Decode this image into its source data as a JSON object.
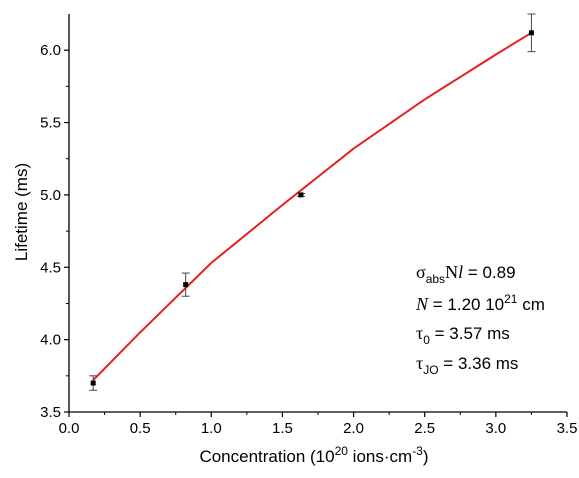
{
  "chart_data": {
    "type": "scatter",
    "xlabel": {
      "main": "Concentration (10",
      "sup1": "20",
      "mid": " ions·cm",
      "sup2": "-3",
      "end": ")"
    },
    "ylabel": "Lifetime (ms)",
    "xlim": [
      0.0,
      3.5
    ],
    "ylim": [
      3.5,
      6.25
    ],
    "x_ticks": [
      "0.0",
      "0.5",
      "1.0",
      "1.5",
      "2.0",
      "2.5",
      "3.0",
      "3.5"
    ],
    "y_ticks": [
      "3.5",
      "4.0",
      "4.5",
      "5.0",
      "5.5",
      "6.0"
    ],
    "x_tick_values": [
      0.0,
      0.5,
      1.0,
      1.5,
      2.0,
      2.5,
      3.0,
      3.5
    ],
    "y_tick_values": [
      3.5,
      4.0,
      4.5,
      5.0,
      5.5,
      6.0
    ],
    "points": [
      {
        "x": 0.17,
        "y": 3.7,
        "err": 0.05
      },
      {
        "x": 0.82,
        "y": 4.38,
        "err": 0.08
      },
      {
        "x": 1.63,
        "y": 5.0,
        "err": 0.01
      },
      {
        "x": 3.25,
        "y": 6.12,
        "err": 0.13
      }
    ],
    "fit_curve": {
      "color": "#e8201c",
      "x": [
        0.17,
        0.5,
        1.0,
        1.5,
        2.0,
        2.5,
        3.0,
        3.25
      ],
      "y": [
        3.72,
        4.05,
        4.53,
        4.93,
        5.32,
        5.66,
        5.97,
        6.12
      ]
    },
    "marker_color": "#000000",
    "annotations": [
      {
        "base": "σ",
        "sub": "abs",
        "tail": "N",
        "tail2": "l",
        "value": " = 0.89"
      },
      {
        "base": "N",
        "value": " = 1.20 10",
        "sup": "21",
        "end": " cm"
      },
      {
        "base": "τ",
        "sub": "0",
        "value": " = 3.57 ms"
      },
      {
        "base": "τ",
        "sub": "JO",
        "value": " = 3.36 ms"
      }
    ]
  }
}
